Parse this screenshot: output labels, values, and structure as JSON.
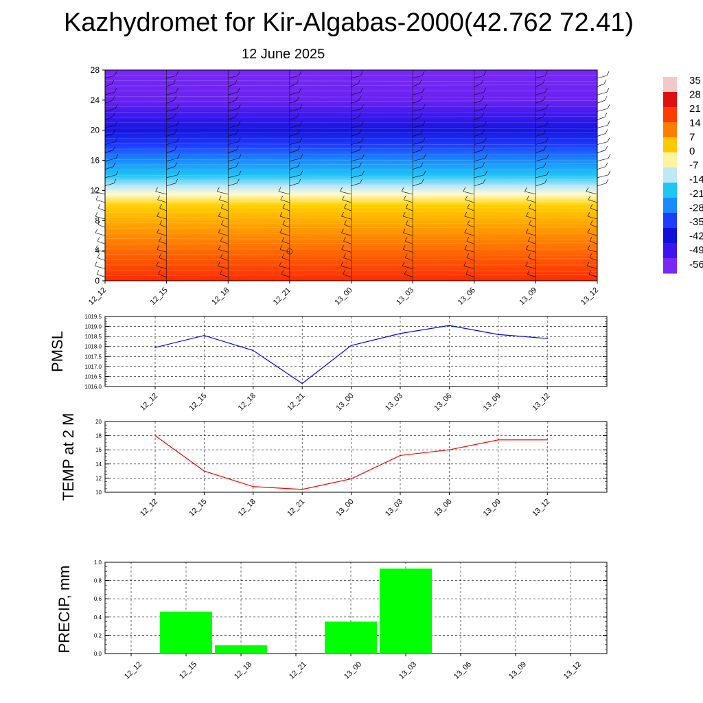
{
  "title": "Kazhydromet for Kir-Algabas-2000(42.762 72.41)",
  "date": "12 June 2025",
  "time_labels": [
    "12_12",
    "12_15",
    "12_18",
    "12_21",
    "13_00",
    "13_03",
    "13_06",
    "13_09",
    "13_12"
  ],
  "chart_data": [
    {
      "type": "heatmap",
      "title": "",
      "x": [
        "12_12",
        "12_15",
        "12_18",
        "12_21",
        "13_00",
        "13_03",
        "13_06",
        "13_09",
        "13_12"
      ],
      "y_ticks": [
        0,
        4,
        8,
        12,
        16,
        20,
        24,
        28
      ],
      "ylim": [
        0,
        28
      ],
      "colorbar_labels": [
        "35",
        "28",
        "21",
        "14",
        "7",
        "0",
        "-7",
        "-14",
        "-21",
        "-28",
        "-35",
        "-42",
        "-49",
        "-56"
      ],
      "colorbar_colors": [
        "#f2c8c8",
        "#e01010",
        "#ff3c00",
        "#ff7d00",
        "#ffc800",
        "#fff3a0",
        "#bfe8f7",
        "#1ec5f5",
        "#1a8bff",
        "#1d3cff",
        "#1010d8",
        "#3c14f0",
        "#7a28f5"
      ],
      "approx_temperature_profile": {
        "height": [
          0,
          2,
          4,
          6,
          8,
          10,
          11.5,
          12.5,
          14,
          16,
          18,
          20,
          22,
          24,
          28
        ],
        "value": [
          30,
          25,
          20,
          15,
          10,
          3,
          -7,
          -14,
          -25,
          -35,
          -45,
          -52,
          -55,
          -58,
          -60
        ]
      },
      "wind_barbs": true
    },
    {
      "type": "line",
      "ylabel": "PMSL",
      "x": [
        "12_12",
        "12_15",
        "12_18",
        "12_21",
        "13_00",
        "13_03",
        "13_06",
        "13_09",
        "13_12"
      ],
      "series": [
        {
          "values": [
            1017.95,
            1018.55,
            1017.8,
            1016.15,
            1018.05,
            1018.65,
            1019.05,
            1018.6,
            1018.4
          ]
        }
      ],
      "y_ticks": [
        "1016.0",
        "1016.5",
        "1017.0",
        "1017.5",
        "1018.0",
        "1018.5",
        "1019.0",
        "1019.5"
      ],
      "ylim": [
        1016.0,
        1019.5
      ],
      "line_color": "#0000ff",
      "grid": true
    },
    {
      "type": "line",
      "ylabel": "TEMP at 2 M",
      "x": [
        "12_12",
        "12_15",
        "12_18",
        "12_21",
        "13_00",
        "13_03",
        "13_06",
        "13_09",
        "13_12"
      ],
      "series": [
        {
          "values": [
            18.0,
            13.0,
            10.8,
            10.4,
            11.9,
            15.2,
            16.0,
            17.4,
            17.4
          ]
        }
      ],
      "y_ticks": [
        "10",
        "12",
        "14",
        "16",
        "18",
        "20"
      ],
      "ylim": [
        10,
        20
      ],
      "line_color": "#ff0000",
      "grid": true
    },
    {
      "type": "bar",
      "ylabel": "PRECIP, mm",
      "categories": [
        "12_15",
        "12_18",
        "13_00",
        "13_03"
      ],
      "values": [
        0.46,
        0.09,
        0.35,
        0.93
      ],
      "x_tick_labels": [
        "12_12",
        "12_15",
        "12_18",
        "12_21",
        "13_00",
        "13_03",
        "13_06",
        "13_09",
        "13_12"
      ],
      "y_ticks": [
        "0.0",
        "0.2",
        "0.4",
        "0.6",
        "0.8",
        "1.0"
      ],
      "ylim": [
        0,
        1.0
      ],
      "bar_color": "#00ff00",
      "grid": true
    }
  ]
}
